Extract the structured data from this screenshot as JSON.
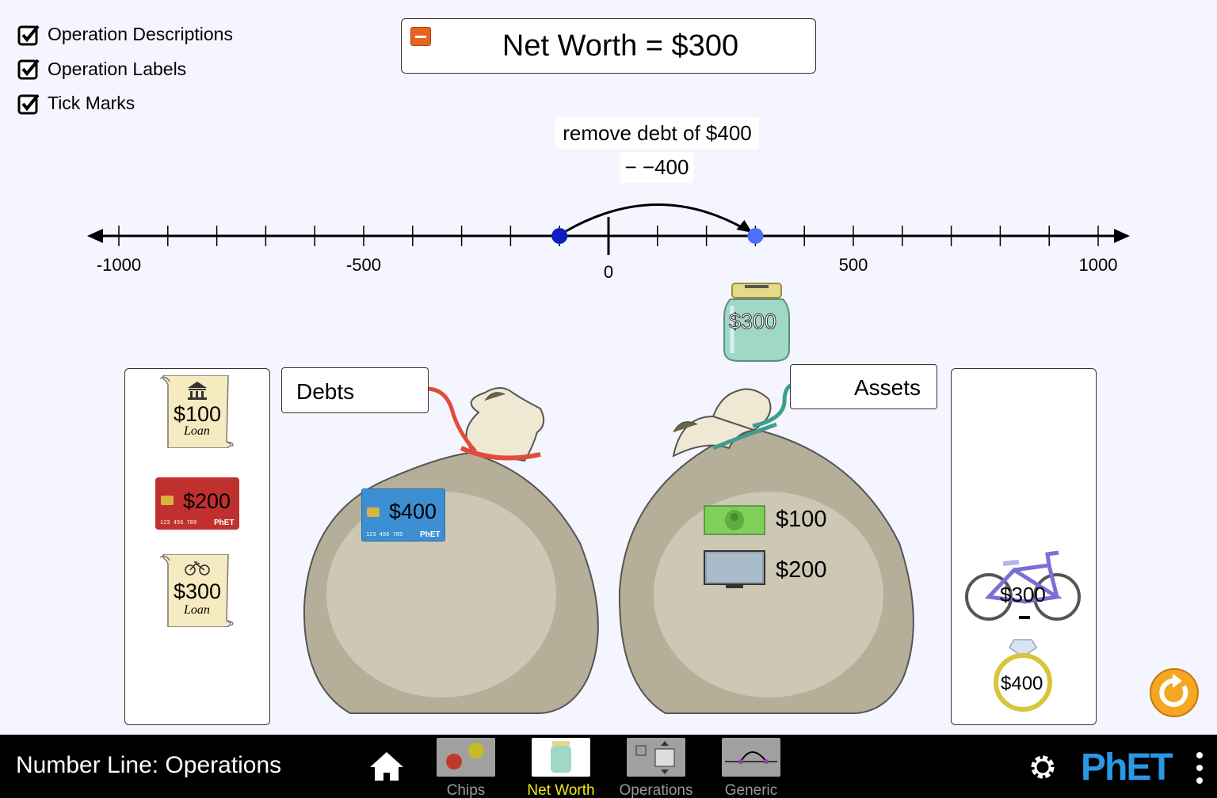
{
  "checkboxes": [
    {
      "label": "Operation Descriptions",
      "checked": true
    },
    {
      "label": "Operation Labels",
      "checked": true
    },
    {
      "label": "Tick Marks",
      "checked": true
    }
  ],
  "net_worth": {
    "text": "Net Worth = $300"
  },
  "operation": {
    "description": "remove debt of $400",
    "label": "− −400"
  },
  "number_line": {
    "min": -1000,
    "max": 1000,
    "tick_step": 100,
    "tick_labels": [
      "-1000",
      "-500",
      "0",
      "500",
      "1000"
    ],
    "start_value": -100,
    "end_value": 300
  },
  "jar": {
    "value": "$300"
  },
  "debts_storage": [
    {
      "amount": "$100",
      "sub": "Loan",
      "kind": "scroll-bank"
    },
    {
      "amount": "$200",
      "kind": "credit-card-red"
    },
    {
      "amount": "$300",
      "sub": "Loan",
      "kind": "scroll-bike"
    }
  ],
  "debts_bag": {
    "label": "Debts",
    "items": [
      {
        "amount": "$400",
        "kind": "credit-card-blue"
      }
    ]
  },
  "assets_bag": {
    "label": "Assets",
    "items": [
      {
        "amount": "$100",
        "kind": "cash"
      },
      {
        "amount": "$200",
        "kind": "tv"
      }
    ]
  },
  "assets_storage": [
    {
      "amount": "$300",
      "kind": "bicycle"
    },
    {
      "amount": "$400",
      "kind": "ring"
    }
  ],
  "card_number": "123 456 789",
  "card_brand": "PhET",
  "navbar": {
    "title": "Number Line: Operations",
    "screens": [
      {
        "label": "Chips",
        "active": false
      },
      {
        "label": "Net Worth",
        "active": true
      },
      {
        "label": "Operations",
        "active": false
      },
      {
        "label": "Generic",
        "active": false
      }
    ],
    "logo": "PhET"
  },
  "colors": {
    "accent_yellow": "#f2e916",
    "reset_orange": "#f5a623",
    "phet_blue": "#2a98e5"
  }
}
